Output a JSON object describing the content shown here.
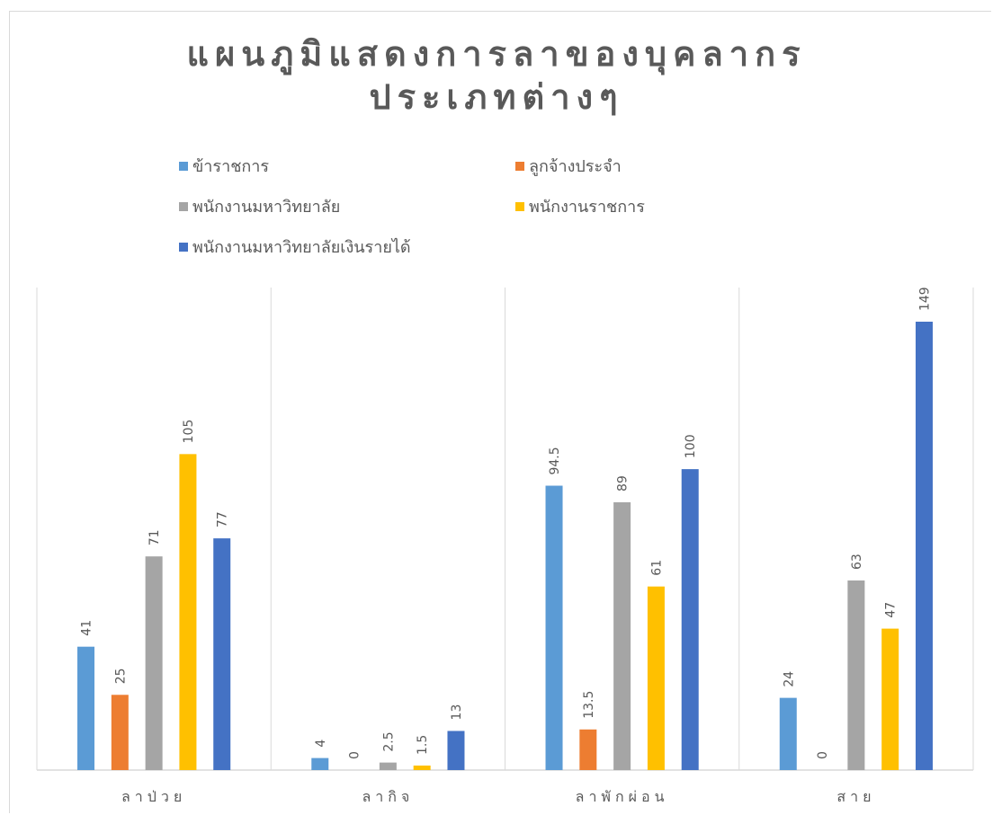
{
  "chart_data": {
    "type": "bar",
    "title": "แผนภูมิแสดงการลาของบุคลากร ประเภทต่างๆ",
    "title_lines": [
      "แผนภูมิแสดงการลาของบุคลากร",
      "ประเภทต่างๆ"
    ],
    "categories": [
      "ลาป่วย",
      "ลากิจ",
      "ลาพักผ่อน",
      "สาย"
    ],
    "series": [
      {
        "name": "ข้าราชการ",
        "color": "#5b9bd5",
        "values": [
          41,
          4,
          94.5,
          24
        ]
      },
      {
        "name": "ลูกจ้างประจำ",
        "color": "#ed7d31",
        "values": [
          25,
          0,
          13.5,
          0
        ]
      },
      {
        "name": "พนักงานมหาวิทยาลัย",
        "color": "#a5a5a5",
        "values": [
          71,
          2.5,
          89,
          63
        ]
      },
      {
        "name": "พนักงานราชการ",
        "color": "#ffc000",
        "values": [
          105,
          1.5,
          61,
          47
        ]
      },
      {
        "name": "พนักงานมหาวิทยาลัยเงินรายได้",
        "color": "#4472c4",
        "values": [
          77,
          13,
          100,
          149
        ]
      }
    ],
    "ylim": [
      0,
      160
    ],
    "xlabel": "",
    "ylabel": "",
    "legend_position": "top",
    "grid": "vertical category separators",
    "data_labels": "rotated above bars"
  }
}
